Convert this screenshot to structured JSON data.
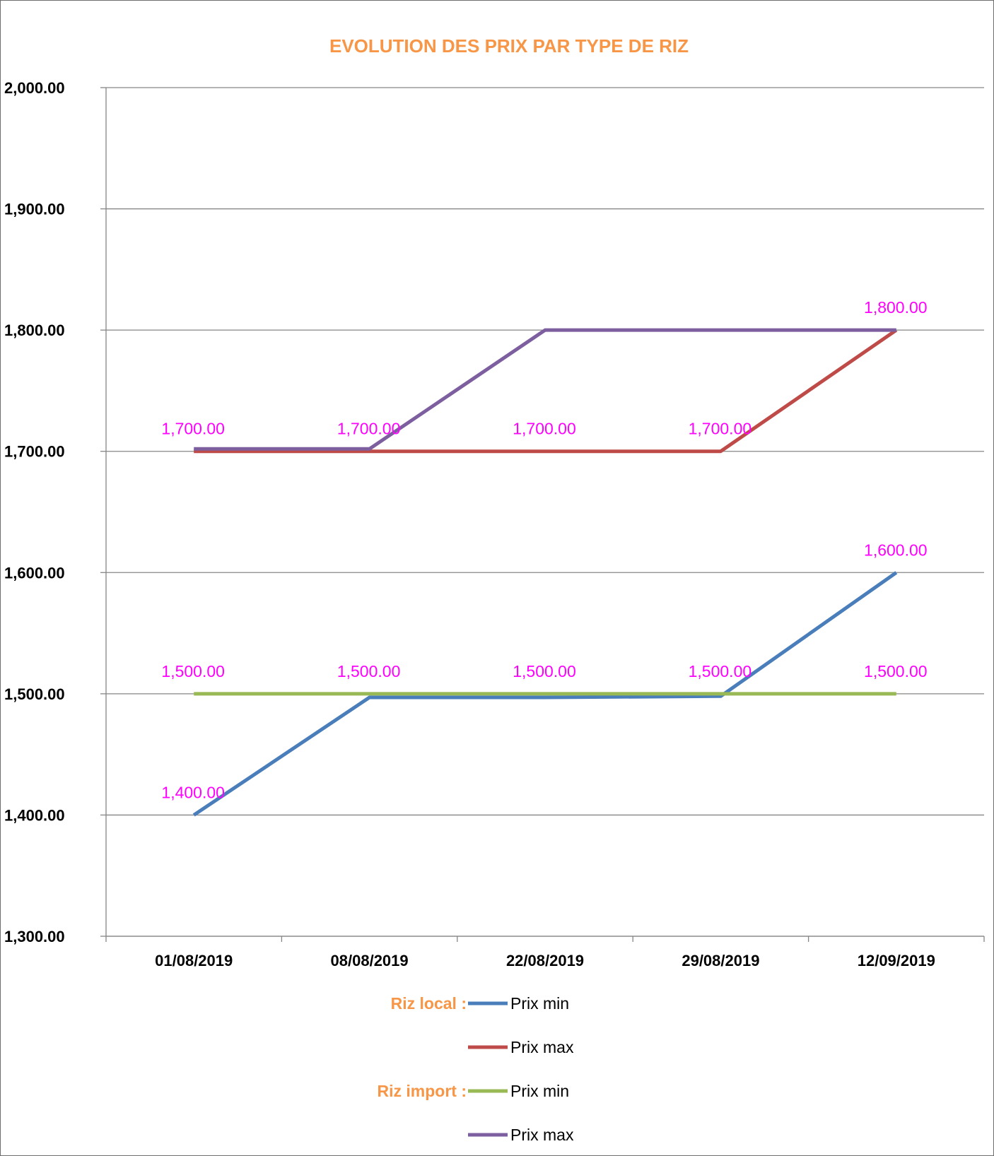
{
  "chart_data": {
    "type": "line",
    "title": "EVOLUTION DES PRIX PAR TYPE DE RIZ",
    "xlabel": "",
    "ylabel": "",
    "categories": [
      "01/08/2019",
      "08/08/2019",
      "22/08/2019",
      "29/08/2019",
      "12/09/2019"
    ],
    "ylim": [
      1300,
      2000
    ],
    "yticks": [
      1300,
      1400,
      1500,
      1600,
      1700,
      1800,
      1900,
      2000
    ],
    "ytick_labels": [
      "1,300.00",
      "1,400.00",
      "1,500.00",
      "1,600.00",
      "1,700.00",
      "1,800.00",
      "1,900.00",
      "2,000.00"
    ],
    "grid": true,
    "legend_position": "bottom",
    "series": [
      {
        "group": "Riz local :",
        "name": "Prix min",
        "color": "#4a7ebb",
        "values": [
          1400,
          1497,
          1497,
          1498,
          1600
        ]
      },
      {
        "group": "",
        "name": "Prix max",
        "color": "#be4b48",
        "values": [
          1700,
          1700,
          1700,
          1700,
          1800
        ]
      },
      {
        "group": "Riz import :",
        "name": "Prix min",
        "color": "#98b954",
        "values": [
          1500,
          1500,
          1500,
          1500,
          1500
        ]
      },
      {
        "group": "",
        "name": "Prix max",
        "color": "#7d5fa0",
        "values": [
          1702,
          1702,
          1800,
          1800,
          1800
        ]
      }
    ],
    "data_labels": [
      {
        "category_index": 0,
        "value": 1400,
        "text": "1,400.00"
      },
      {
        "category_index": 0,
        "value": 1500,
        "text": "1,500.00"
      },
      {
        "category_index": 1,
        "value": 1500,
        "text": "1,500.00"
      },
      {
        "category_index": 2,
        "value": 1500,
        "text": "1,500.00"
      },
      {
        "category_index": 3,
        "value": 1500,
        "text": "1,500.00"
      },
      {
        "category_index": 4,
        "value": 1500,
        "text": "1,500.00"
      },
      {
        "category_index": 4,
        "value": 1600,
        "text": "1,600.00"
      },
      {
        "category_index": 0,
        "value": 1700,
        "text": "1,700.00"
      },
      {
        "category_index": 1,
        "value": 1700,
        "text": "1,700.00"
      },
      {
        "category_index": 2,
        "value": 1700,
        "text": "1,700.00"
      },
      {
        "category_index": 3,
        "value": 1700,
        "text": "1,700.00"
      },
      {
        "category_index": 4,
        "value": 1800,
        "text": "1,800.00"
      }
    ],
    "colors": {
      "title": "#f79646",
      "legend_group": "#f79646",
      "data_label": "#ff00ff",
      "grid": "#868686",
      "axis": "#868686"
    }
  }
}
